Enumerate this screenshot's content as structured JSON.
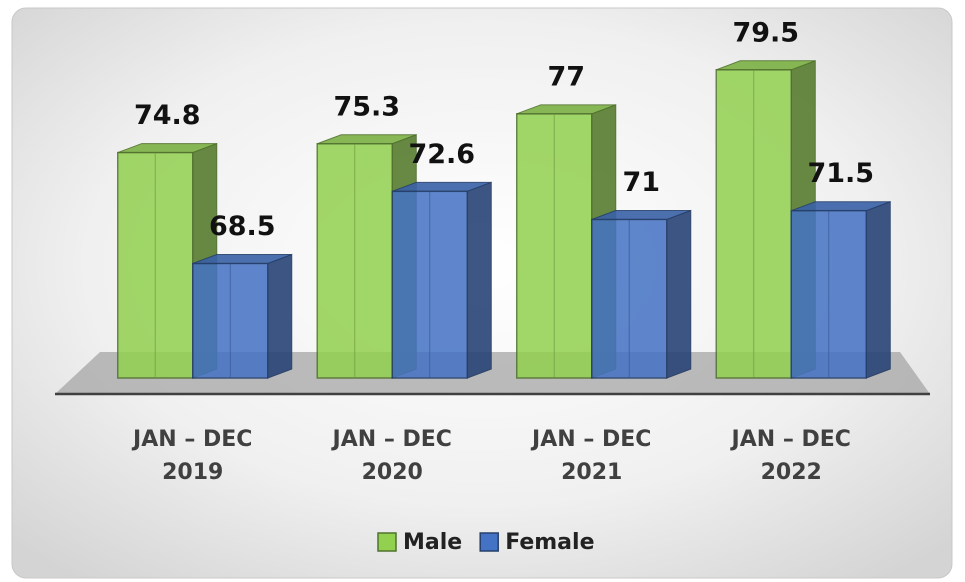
{
  "chart_data": {
    "type": "bar3d",
    "categories": [
      [
        "JAN – DEC",
        "2019"
      ],
      [
        "JAN – DEC",
        "2020"
      ],
      [
        "JAN – DEC",
        "2021"
      ],
      [
        "JAN – DEC",
        "2022"
      ]
    ],
    "series": [
      {
        "name": "Male",
        "color": "#92d050",
        "values": [
          74.8,
          75.3,
          77,
          79.5
        ]
      },
      {
        "name": "Female",
        "color": "#4472c4",
        "values": [
          68.5,
          72.6,
          71,
          71.5
        ]
      }
    ],
    "ylim": [
      62,
      80
    ]
  }
}
